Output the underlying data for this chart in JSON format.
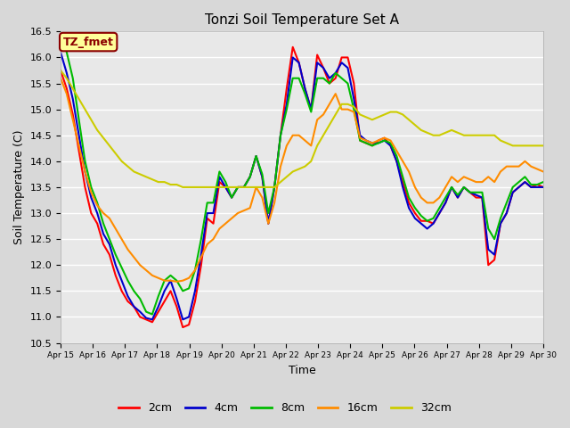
{
  "title": "Tonzi Soil Temperature Set A",
  "ylabel": "Soil Temperature (C)",
  "xlabel": "Time",
  "ylim": [
    10.5,
    16.5
  ],
  "yticks": [
    10.5,
    11.0,
    11.5,
    12.0,
    12.5,
    13.0,
    13.5,
    14.0,
    14.5,
    15.0,
    15.5,
    16.0,
    16.5
  ],
  "date_labels": [
    "Apr 15",
    "Apr 16",
    "Apr 17",
    "Apr 18",
    "Apr 19",
    "Apr 20",
    "Apr 21",
    "Apr 22",
    "Apr 23",
    "Apr 24",
    "Apr 25",
    "Apr 26",
    "Apr 27",
    "Apr 28",
    "Apr 29",
    "Apr 30"
  ],
  "legend_label": "TZ_fmet",
  "legend_bg": "#FFFF99",
  "legend_border": "#8B0000",
  "fig_bg": "#D8D8D8",
  "plot_bg": "#E8E8E8",
  "line_colors": [
    "#FF0000",
    "#0000CC",
    "#00BB00",
    "#FF8C00",
    "#CCCC00"
  ],
  "line_labels": [
    "2cm",
    "4cm",
    "8cm",
    "16cm",
    "32cm"
  ],
  "series": {
    "cm2": [
      15.75,
      15.4,
      14.9,
      14.2,
      13.5,
      13.0,
      12.8,
      12.4,
      12.2,
      11.8,
      11.5,
      11.3,
      11.2,
      11.0,
      10.95,
      10.9,
      11.1,
      11.3,
      11.5,
      11.2,
      10.8,
      10.85,
      11.3,
      12.0,
      12.9,
      12.8,
      13.6,
      13.5,
      13.3,
      13.5,
      13.5,
      13.7,
      14.1,
      13.7,
      12.8,
      13.5,
      14.5,
      15.4,
      16.2,
      15.9,
      15.4,
      15.0,
      16.05,
      15.8,
      15.5,
      15.6,
      16.0,
      16.0,
      15.5,
      14.4,
      14.35,
      14.3,
      14.4,
      14.45,
      14.3,
      14.0,
      13.6,
      13.2,
      13.0,
      12.85,
      12.85,
      12.8,
      13.0,
      13.2,
      13.5,
      13.3,
      13.5,
      13.4,
      13.3,
      13.3,
      12.0,
      12.1,
      12.8,
      13.0,
      13.4,
      13.5,
      13.6,
      13.5,
      13.55,
      13.5
    ],
    "cm4": [
      16.1,
      15.7,
      15.2,
      14.5,
      13.8,
      13.3,
      13.0,
      12.6,
      12.4,
      12.0,
      11.7,
      11.4,
      11.2,
      11.1,
      10.98,
      10.95,
      11.2,
      11.5,
      11.7,
      11.35,
      10.95,
      11.0,
      11.5,
      12.2,
      13.0,
      13.0,
      13.7,
      13.5,
      13.3,
      13.5,
      13.5,
      13.7,
      14.1,
      13.7,
      12.8,
      13.5,
      14.5,
      15.1,
      16.0,
      15.9,
      15.4,
      15.0,
      15.9,
      15.8,
      15.6,
      15.7,
      15.9,
      15.8,
      15.2,
      14.5,
      14.4,
      14.35,
      14.35,
      14.4,
      14.3,
      14.0,
      13.5,
      13.1,
      12.9,
      12.8,
      12.7,
      12.8,
      13.0,
      13.2,
      13.5,
      13.3,
      13.5,
      13.4,
      13.35,
      13.3,
      12.3,
      12.2,
      12.8,
      13.0,
      13.4,
      13.5,
      13.6,
      13.5,
      13.5,
      13.5
    ],
    "cm8": [
      16.4,
      16.1,
      15.6,
      14.8,
      14.0,
      13.5,
      13.2,
      12.8,
      12.5,
      12.2,
      11.95,
      11.7,
      11.5,
      11.35,
      11.1,
      11.05,
      11.4,
      11.7,
      11.8,
      11.7,
      11.5,
      11.55,
      11.9,
      12.5,
      13.2,
      13.2,
      13.8,
      13.6,
      13.3,
      13.5,
      13.5,
      13.7,
      14.1,
      13.75,
      13.0,
      13.5,
      14.5,
      15.0,
      15.6,
      15.6,
      15.3,
      14.95,
      15.6,
      15.6,
      15.5,
      15.7,
      15.6,
      15.5,
      15.0,
      14.4,
      14.35,
      14.3,
      14.35,
      14.4,
      14.35,
      14.1,
      13.7,
      13.3,
      13.1,
      12.95,
      12.85,
      12.9,
      13.1,
      13.3,
      13.5,
      13.35,
      13.5,
      13.4,
      13.4,
      13.4,
      12.7,
      12.5,
      12.9,
      13.2,
      13.5,
      13.6,
      13.7,
      13.55,
      13.55,
      13.6
    ],
    "cm16": [
      15.6,
      15.3,
      14.8,
      14.3,
      13.8,
      13.4,
      13.15,
      13.0,
      12.9,
      12.7,
      12.5,
      12.3,
      12.15,
      12.0,
      11.9,
      11.8,
      11.75,
      11.7,
      11.7,
      11.68,
      11.7,
      11.75,
      11.9,
      12.15,
      12.4,
      12.5,
      12.7,
      12.8,
      12.9,
      13.0,
      13.05,
      13.1,
      13.5,
      13.3,
      12.8,
      13.2,
      13.9,
      14.3,
      14.5,
      14.5,
      14.4,
      14.3,
      14.8,
      14.9,
      15.1,
      15.3,
      15.0,
      15.0,
      14.95,
      14.45,
      14.4,
      14.35,
      14.4,
      14.45,
      14.4,
      14.2,
      14.0,
      13.8,
      13.5,
      13.3,
      13.2,
      13.2,
      13.3,
      13.5,
      13.7,
      13.6,
      13.7,
      13.65,
      13.6,
      13.6,
      13.7,
      13.6,
      13.8,
      13.9,
      13.9,
      13.9,
      14.0,
      13.9,
      13.85,
      13.8
    ],
    "cm32": [
      15.75,
      15.6,
      15.4,
      15.2,
      15.0,
      14.8,
      14.6,
      14.45,
      14.3,
      14.15,
      14.0,
      13.9,
      13.8,
      13.75,
      13.7,
      13.65,
      13.6,
      13.6,
      13.55,
      13.55,
      13.5,
      13.5,
      13.5,
      13.5,
      13.5,
      13.5,
      13.5,
      13.5,
      13.5,
      13.5,
      13.5,
      13.5,
      13.5,
      13.5,
      13.5,
      13.5,
      13.6,
      13.7,
      13.8,
      13.85,
      13.9,
      14.0,
      14.3,
      14.5,
      14.7,
      14.9,
      15.1,
      15.1,
      15.05,
      14.9,
      14.85,
      14.8,
      14.85,
      14.9,
      14.95,
      14.95,
      14.9,
      14.8,
      14.7,
      14.6,
      14.55,
      14.5,
      14.5,
      14.55,
      14.6,
      14.55,
      14.5,
      14.5,
      14.5,
      14.5,
      14.5,
      14.5,
      14.4,
      14.35,
      14.3,
      14.3,
      14.3,
      14.3,
      14.3,
      14.3
    ]
  }
}
